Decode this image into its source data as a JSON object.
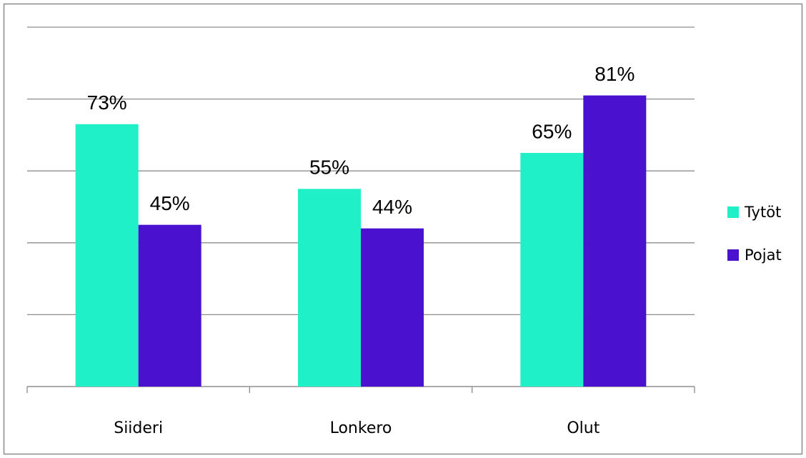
{
  "chart_data": {
    "type": "bar",
    "categories": [
      "Siideri",
      "Lonkero",
      "Olut"
    ],
    "series": [
      {
        "name": "Tytöt",
        "color": "#1ff0c8",
        "values": [
          73,
          55,
          65
        ],
        "value_labels": [
          "73%",
          "55%",
          "65%"
        ]
      },
      {
        "name": "Pojat",
        "color": "#4a12cf",
        "values": [
          45,
          44,
          81
        ],
        "value_labels": [
          "45%",
          "44%",
          "81%"
        ]
      }
    ],
    "ylim": [
      0,
      100
    ],
    "yticks": [
      0,
      20,
      40,
      60,
      80,
      100
    ],
    "grid": true,
    "legend": "right"
  }
}
